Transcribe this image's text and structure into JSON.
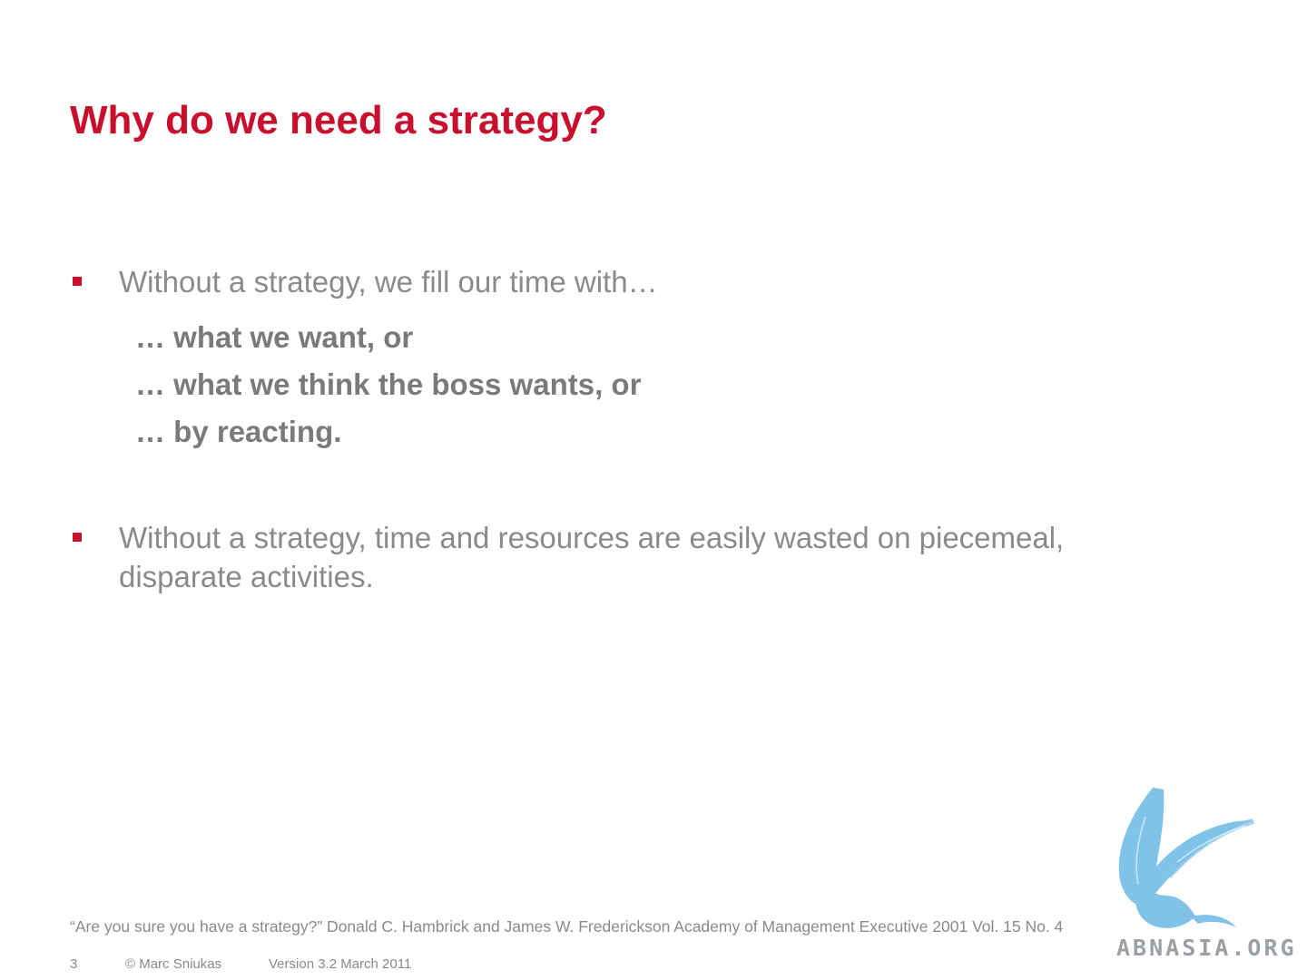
{
  "slide": {
    "title": "Why do we need a strategy?",
    "bullets": [
      {
        "text": "Without a strategy, we fill our time with…",
        "subitems": [
          "… what we want, or",
          "… what we think the boss wants, or",
          "… by reacting."
        ]
      },
      {
        "text": "Without a strategy, time and resources are easily wasted on piecemeal, disparate activities."
      }
    ],
    "citation": "“Are you sure you have a strategy?” Donald C. Hambrick and James W. Frederickson Academy of Management Executive 2001 Vol. 15 No. 4"
  },
  "footer": {
    "page_number": "3",
    "copyright": "© Marc Sniukas",
    "version": "Version 3.2 March 2011"
  },
  "watermark": {
    "logo_icon": "griffin-logo-icon",
    "text": "ABNASIA.ORG"
  },
  "colors": {
    "accent": "#c8102e",
    "text": "#8a8a8a",
    "logo": "#6bb8e4"
  }
}
